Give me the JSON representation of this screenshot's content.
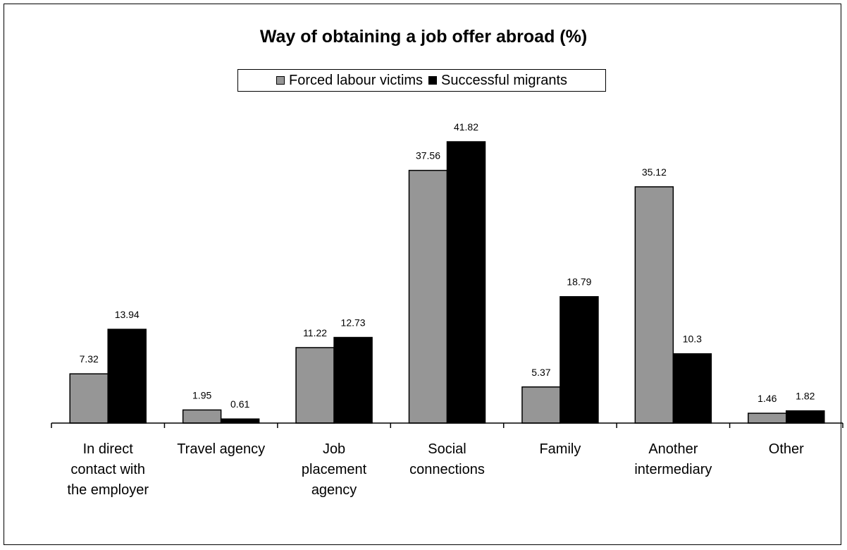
{
  "chart_data": {
    "type": "bar",
    "title": "Way of obtaining a job offer abroad (%)",
    "xlabel": "",
    "ylabel": "",
    "ylim": [
      0,
      45
    ],
    "grid": false,
    "legend_position": "top-center",
    "categories": [
      [
        "In direct",
        "contact with",
        "the employer"
      ],
      [
        "Travel agency"
      ],
      [
        "Job",
        "placement",
        "agency"
      ],
      [
        "Social",
        "connections"
      ],
      [
        "Family"
      ],
      [
        "Another",
        "intermediary"
      ],
      [
        "Other"
      ]
    ],
    "series": [
      {
        "name": "Forced labour victims",
        "color": "#969696",
        "values": [
          7.32,
          1.95,
          11.22,
          37.56,
          5.37,
          35.12,
          1.46
        ],
        "labels": [
          "7.32",
          "1.95",
          "11.22",
          "37.56",
          "5.37",
          "35.12",
          "1.46"
        ]
      },
      {
        "name": "Successful migrants",
        "color": "#000000",
        "values": [
          13.94,
          0.61,
          12.73,
          41.82,
          18.79,
          10.3,
          1.82
        ],
        "labels": [
          "13.94",
          "0.61",
          "12.73",
          "41.82",
          "18.79",
          "10.3",
          "1.82"
        ]
      }
    ]
  }
}
